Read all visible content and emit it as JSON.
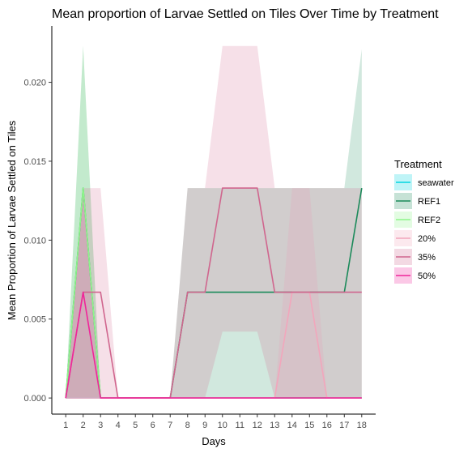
{
  "chart_data": {
    "type": "area",
    "title": "Mean proportion of Larvae Settled on Tiles Over Time by Treatment",
    "xlabel": "Days",
    "ylabel": "Mean Proportion of Larvae Settled on Tiles",
    "x": [
      1,
      2,
      3,
      4,
      5,
      6,
      7,
      8,
      9,
      10,
      11,
      12,
      13,
      14,
      15,
      16,
      17,
      18
    ],
    "x_tick_labels": [
      "1",
      "2",
      "3",
      "4",
      "5",
      "6",
      "7",
      "8",
      "9",
      "10",
      "11",
      "12",
      "13",
      "14",
      "15",
      "16",
      "17",
      "18"
    ],
    "y_ticks": [
      0.0,
      0.005,
      0.01,
      0.015,
      0.02
    ],
    "y_tick_labels": [
      "0.000",
      "0.005",
      "0.010",
      "0.015",
      "0.020"
    ],
    "xlim": [
      0.2,
      18.8
    ],
    "ylim": [
      -0.00102,
      0.02357
    ],
    "grid": false,
    "legend": {
      "title": "Treatment",
      "position": "right"
    },
    "series": [
      {
        "name": "seawater",
        "color": "#00d5e0",
        "mean": [
          0,
          0,
          0,
          0,
          0,
          0,
          0,
          0,
          0,
          0,
          0,
          0,
          0,
          0,
          0,
          0,
          0,
          0
        ],
        "lower": [
          0,
          0,
          0,
          0,
          0,
          0,
          0,
          0,
          0,
          0,
          0,
          0,
          0,
          0,
          0,
          0,
          0,
          0
        ],
        "upper": [
          0,
          0,
          0,
          0,
          0,
          0,
          0,
          0,
          0,
          0,
          0,
          0,
          0,
          0,
          0,
          0,
          0,
          0
        ]
      },
      {
        "name": "REF1",
        "color": "#1b8a5a",
        "mean": [
          0,
          0.0133,
          0,
          0,
          0,
          0,
          0,
          0.0067,
          0.0067,
          0.0067,
          0.0067,
          0.0067,
          0.0067,
          0.0067,
          0.0067,
          0.0067,
          0.0067,
          0.0133
        ],
        "lower": [
          0,
          0,
          0,
          0,
          0,
          0,
          0,
          0,
          0,
          0,
          0,
          0,
          0,
          0,
          0,
          0,
          0,
          0
        ],
        "upper": [
          0,
          0.0223,
          0,
          0,
          0,
          0,
          0,
          0.0133,
          0.0133,
          0.0133,
          0.0133,
          0.0133,
          0.0133,
          0.0133,
          0.0133,
          0.0133,
          0.0133,
          0.0221
        ]
      },
      {
        "name": "REF2",
        "color": "#8ef58a",
        "mean": [
          0,
          0.0133,
          0,
          0,
          0,
          0,
          0,
          0,
          0,
          0,
          0,
          0,
          0,
          0,
          0,
          0,
          0,
          0
        ],
        "lower": [
          0,
          0,
          0,
          0,
          0,
          0,
          0,
          0,
          0,
          0,
          0,
          0,
          0,
          0,
          0,
          0,
          0,
          0
        ],
        "upper": [
          0,
          0.0223,
          0,
          0,
          0,
          0,
          0,
          0,
          0,
          0,
          0,
          0,
          0,
          0,
          0,
          0,
          0,
          0
        ]
      },
      {
        "name": "20%",
        "color": "#f2a6bc",
        "mean": [
          0,
          0,
          0,
          0,
          0,
          0,
          0,
          0,
          0,
          0,
          0,
          0,
          0,
          0.0067,
          0.0067,
          0,
          0,
          0
        ],
        "lower": [
          0,
          0,
          0,
          0,
          0,
          0,
          0,
          0,
          0,
          0,
          0,
          0,
          0,
          0,
          0,
          0,
          0,
          0
        ],
        "upper": [
          0,
          0,
          0,
          0,
          0,
          0,
          0,
          0,
          0,
          0,
          0,
          0,
          0,
          0.0133,
          0.0133,
          0,
          0,
          0
        ]
      },
      {
        "name": "35%",
        "color": "#d0668e",
        "mean": [
          0,
          0.0067,
          0.0067,
          0,
          0,
          0,
          0,
          0.0067,
          0.0067,
          0.0133,
          0.0133,
          0.0133,
          0.0067,
          0.0067,
          0.0067,
          0.0067,
          0.0067,
          0.0067
        ],
        "lower": [
          0,
          0,
          0,
          0,
          0,
          0,
          0,
          0,
          0,
          0.0042,
          0.0042,
          0.0042,
          0,
          0,
          0,
          0,
          0,
          0
        ],
        "upper": [
          0,
          0.0133,
          0.0133,
          0,
          0,
          0,
          0,
          0.0133,
          0.0133,
          0.0223,
          0.0223,
          0.0223,
          0.0133,
          0.0133,
          0.0133,
          0.0133,
          0.0133,
          0.0133
        ]
      },
      {
        "name": "50%",
        "color": "#f0259a",
        "mean": [
          0,
          0.0067,
          0,
          0,
          0,
          0,
          0,
          0,
          0,
          0,
          0,
          0,
          0,
          0,
          0,
          0,
          0,
          0
        ],
        "lower": [
          0,
          0,
          0,
          0,
          0,
          0,
          0,
          0,
          0,
          0,
          0,
          0,
          0,
          0,
          0,
          0,
          0,
          0
        ],
        "upper": [
          0,
          0.0133,
          0,
          0,
          0,
          0,
          0,
          0,
          0,
          0,
          0,
          0,
          0,
          0,
          0,
          0,
          0,
          0
        ]
      }
    ]
  }
}
